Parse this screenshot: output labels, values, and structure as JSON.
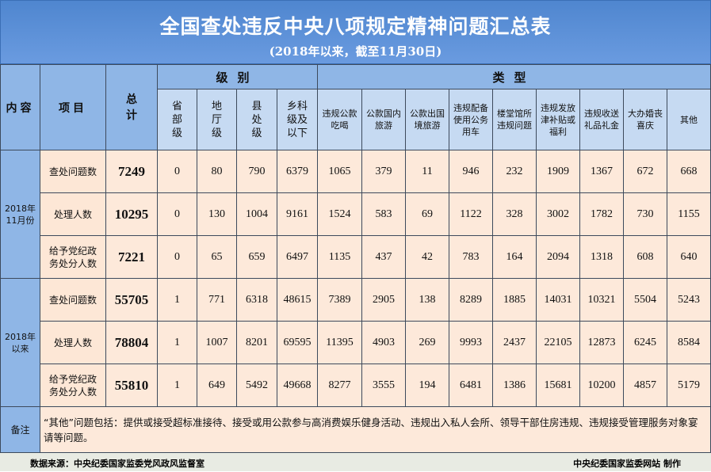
{
  "title": "全国查处违反中央八项规定精神问题汇总表",
  "subtitle": "(2018年以来，截至11月30日)",
  "header": {
    "content": "内容",
    "item": "项目",
    "total": "总计",
    "level_group": "级别",
    "type_group": "类型",
    "levels": [
      "省部级",
      "地厅级",
      "县处级",
      "乡科级及以下"
    ],
    "types": [
      "违规公款吃喝",
      "公款国内旅游",
      "公款出国境旅游",
      "违规配备使用公务用车",
      "楼堂馆所违规问题",
      "违规发放津补贴或福利",
      "违规收送礼品礼金",
      "大办婚丧喜庆",
      "其他"
    ]
  },
  "chart_data": {
    "type": "table",
    "groups": [
      {
        "label": "2018年11月份",
        "rows": [
          {
            "item": "查处问题数",
            "total": 7249,
            "levels": [
              0,
              80,
              790,
              6379
            ],
            "types": [
              1065,
              379,
              11,
              946,
              232,
              1909,
              1367,
              672,
              668
            ]
          },
          {
            "item": "处理人数",
            "total": 10295,
            "levels": [
              0,
              130,
              1004,
              9161
            ],
            "types": [
              1524,
              583,
              69,
              1122,
              328,
              3002,
              1782,
              730,
              1155
            ]
          },
          {
            "item": "给予党纪政务处分人数",
            "total": 7221,
            "levels": [
              0,
              65,
              659,
              6497
            ],
            "types": [
              1135,
              437,
              42,
              783,
              164,
              2094,
              1318,
              608,
              640
            ]
          }
        ]
      },
      {
        "label": "2018年以来",
        "rows": [
          {
            "item": "查处问题数",
            "total": 55705,
            "levels": [
              1,
              771,
              6318,
              48615
            ],
            "types": [
              7389,
              2905,
              138,
              8289,
              1885,
              14031,
              10321,
              5504,
              5243
            ]
          },
          {
            "item": "处理人数",
            "total": 78804,
            "levels": [
              1,
              1007,
              8201,
              69595
            ],
            "types": [
              11395,
              4903,
              269,
              9993,
              2437,
              22105,
              12873,
              6245,
              8584
            ]
          },
          {
            "item": "给予党纪政务处分人数",
            "total": 55810,
            "levels": [
              1,
              649,
              5492,
              49668
            ],
            "types": [
              8277,
              3555,
              194,
              6481,
              1386,
              15681,
              10200,
              4857,
              5179
            ]
          }
        ]
      }
    ]
  },
  "note": {
    "label": "备注",
    "text": "“其他”问题包括：提供或接受超标准接待、接受或用公款参与高消费娱乐健身活动、违规出入私人会所、领导干部住房违规、违规接受管理服务对象宴请等问题。"
  },
  "footer": {
    "source": "数据来源：中央纪委国家监委党风政风监督室",
    "maker": "中央纪委国家监委网站  制作"
  },
  "colors": {
    "title_bg": "#5b8fd6",
    "header_bg": "#8fb6e6",
    "subheader_bg": "#c6daf2",
    "body_bg": "#fde9da"
  }
}
